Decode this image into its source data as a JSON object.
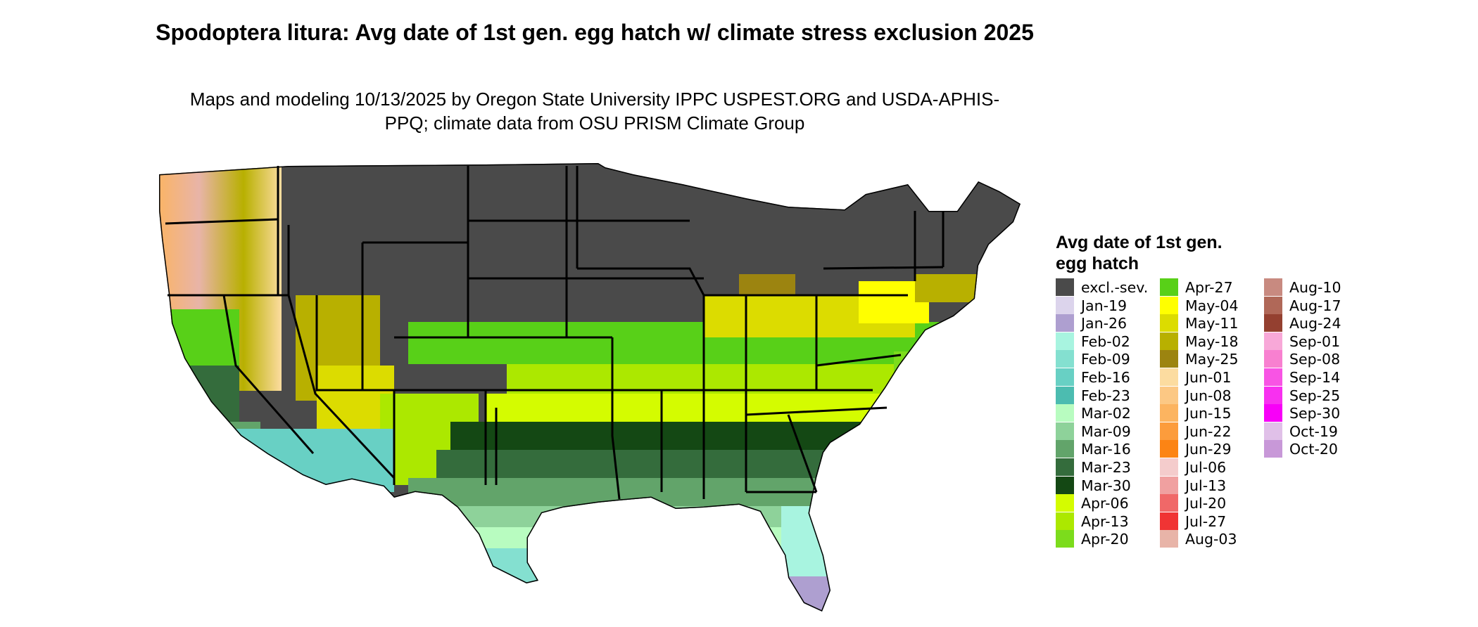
{
  "title": "Spodoptera litura: Avg date of 1st gen. egg hatch w/ climate stress exclusion 2025",
  "subtitle": "Maps and modeling 10/13/2025 by Oregon State University IPPC USPEST.ORG and USDA-APHIS-PPQ; climate data from OSU PRISM Climate Group",
  "legend": {
    "title": "Avg date of 1st gen. egg hatch",
    "items": [
      {
        "label": "excl.-sev.",
        "color": "#4a4a4a"
      },
      {
        "label": "Jan-19",
        "color": "#dcd4ec"
      },
      {
        "label": "Jan-26",
        "color": "#ae9fd0"
      },
      {
        "label": "Feb-02",
        "color": "#a8f4e0"
      },
      {
        "label": "Feb-09",
        "color": "#84e0d0"
      },
      {
        "label": "Feb-16",
        "color": "#68d0c4"
      },
      {
        "label": "Feb-23",
        "color": "#4cbcb0"
      },
      {
        "label": "Mar-02",
        "color": "#b8fcc0"
      },
      {
        "label": "Mar-09",
        "color": "#8ed29a"
      },
      {
        "label": "Mar-16",
        "color": "#62a46a"
      },
      {
        "label": "Mar-23",
        "color": "#346c3c"
      },
      {
        "label": "Mar-30",
        "color": "#144814"
      },
      {
        "label": "Apr-06",
        "color": "#d4fc00"
      },
      {
        "label": "Apr-13",
        "color": "#ace800"
      },
      {
        "label": "Apr-20",
        "color": "#7cdc1c"
      },
      {
        "label": "Apr-27",
        "color": "#58d018"
      },
      {
        "label": "May-04",
        "color": "#ffff00"
      },
      {
        "label": "May-11",
        "color": "#dcdc00"
      },
      {
        "label": "May-18",
        "color": "#b8b000"
      },
      {
        "label": "May-25",
        "color": "#9c8410"
      },
      {
        "label": "Jun-01",
        "color": "#fcdca0"
      },
      {
        "label": "Jun-08",
        "color": "#fcc884"
      },
      {
        "label": "Jun-15",
        "color": "#fcb460"
      },
      {
        "label": "Jun-22",
        "color": "#fc9c3c"
      },
      {
        "label": "Jun-29",
        "color": "#fc8414"
      },
      {
        "label": "Jul-06",
        "color": "#f4cccc"
      },
      {
        "label": "Jul-13",
        "color": "#f0a0a0"
      },
      {
        "label": "Jul-20",
        "color": "#f06868"
      },
      {
        "label": "Jul-27",
        "color": "#f03434"
      },
      {
        "label": "Aug-03",
        "color": "#e8b4a8"
      },
      {
        "label": "Aug-10",
        "color": "#c88a80"
      },
      {
        "label": "Aug-17",
        "color": "#b06858"
      },
      {
        "label": "Aug-24",
        "color": "#944030"
      },
      {
        "label": "Sep-01",
        "color": "#f8a8d8"
      },
      {
        "label": "Sep-08",
        "color": "#f880d0"
      },
      {
        "label": "Sep-14",
        "color": "#f854e4"
      },
      {
        "label": "Sep-25",
        "color": "#f830f0"
      },
      {
        "label": "Sep-30",
        "color": "#f800f8"
      },
      {
        "label": "Oct-19",
        "color": "#e0c0e8"
      },
      {
        "label": "Oct-20",
        "color": "#c898d8"
      }
    ]
  }
}
